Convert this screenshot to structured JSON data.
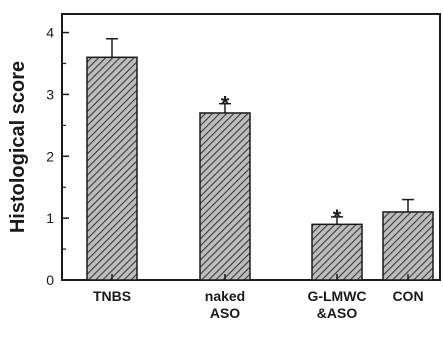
{
  "chart_data": {
    "type": "bar",
    "title": "",
    "xlabel": "",
    "ylabel": "Histological score",
    "ylim": [
      0,
      4.3
    ],
    "yticks": [
      "0",
      "1",
      "2",
      "3",
      "4"
    ],
    "categories": [
      [
        "TNBS"
      ],
      [
        "naked",
        "ASO"
      ],
      [
        "G-LMWC",
        "&ASO"
      ],
      [
        "CON"
      ]
    ],
    "values": [
      3.6,
      2.7,
      0.9,
      1.1
    ],
    "errors": [
      0.3,
      0.15,
      0.12,
      0.2
    ],
    "significance": [
      "",
      "*",
      "*",
      ""
    ],
    "grid": false,
    "bar_fill": "hatched",
    "bar_color": "#6f6f6f"
  }
}
